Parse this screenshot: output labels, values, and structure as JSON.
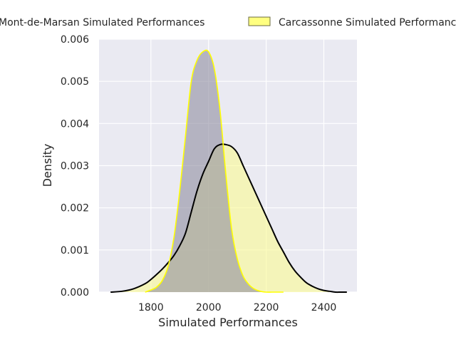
{
  "chart_data": {
    "type": "area",
    "xlabel": "Simulated Performances",
    "ylabel": "Density",
    "xlim": [
      1620,
      2515
    ],
    "ylim": [
      0,
      0.006
    ],
    "xticks": [
      1800,
      2000,
      2200,
      2400
    ],
    "xtick_labels": [
      "1800",
      "2000",
      "2200",
      "2400"
    ],
    "yticks": [
      0,
      0.001,
      0.002,
      0.003,
      0.004,
      0.005,
      0.006
    ],
    "ytick_labels": [
      "0.000",
      "0.001",
      "0.002",
      "0.003",
      "0.004",
      "0.005",
      "0.006"
    ],
    "grid": true,
    "legend_position": "top",
    "series": [
      {
        "name": "Mont-de-Marsan Simulated Performances",
        "line_color": "#000000",
        "fill_color": "#fafa96",
        "x": [
          1660,
          1700,
          1740,
          1780,
          1800,
          1820,
          1840,
          1860,
          1880,
          1900,
          1920,
          1940,
          1960,
          1980,
          2000,
          2020,
          2040,
          2060,
          2080,
          2100,
          2120,
          2140,
          2160,
          2180,
          2200,
          2220,
          2240,
          2260,
          2280,
          2300,
          2320,
          2340,
          2360,
          2380,
          2400,
          2420,
          2440,
          2460,
          2480
        ],
        "y": [
          0.0,
          2e-05,
          8e-05,
          0.0002,
          0.0003,
          0.00042,
          0.00055,
          0.0007,
          0.00087,
          0.0011,
          0.0014,
          0.0019,
          0.0024,
          0.0028,
          0.0031,
          0.0034,
          0.0035,
          0.0035,
          0.00345,
          0.0033,
          0.003,
          0.0027,
          0.0024,
          0.0021,
          0.0018,
          0.0015,
          0.0012,
          0.00095,
          0.0007,
          0.0005,
          0.00035,
          0.00022,
          0.00014,
          8e-05,
          4e-05,
          2e-05,
          0.0,
          0.0,
          0.0
        ]
      },
      {
        "name": "Carcassonne Simulated Performances",
        "line_color": "#ffff00",
        "fill_color": "#8f8ea0",
        "x": [
          1780,
          1800,
          1820,
          1840,
          1860,
          1880,
          1900,
          1920,
          1940,
          1960,
          1980,
          2000,
          2020,
          2040,
          2060,
          2080,
          2100,
          2120,
          2140,
          2160,
          2180,
          2200,
          2220,
          2240,
          2260
        ],
        "y": [
          0.0,
          5e-05,
          0.00012,
          0.00028,
          0.00062,
          0.0013,
          0.0024,
          0.0037,
          0.005,
          0.0055,
          0.0057,
          0.0057,
          0.0053,
          0.0043,
          0.0028,
          0.0015,
          0.00078,
          0.00038,
          0.00018,
          7e-05,
          2e-05,
          0.0,
          0.0,
          0.0,
          0.0
        ]
      }
    ]
  }
}
